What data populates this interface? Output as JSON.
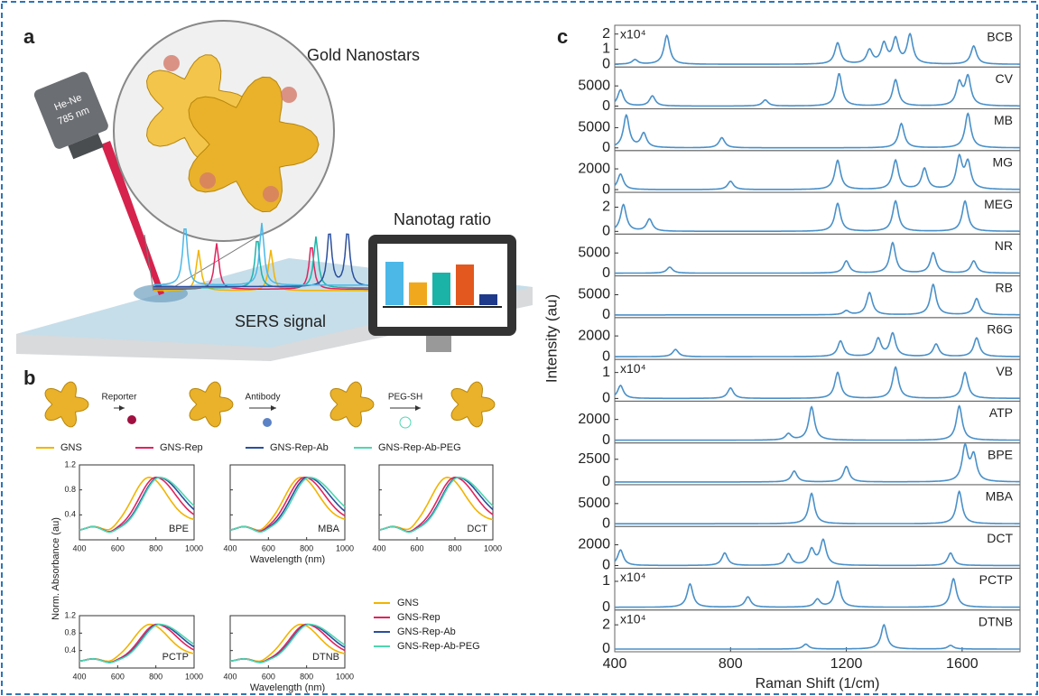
{
  "panel_labels": [
    "a",
    "b",
    "c"
  ],
  "panel_a": {
    "title": "Gold Nanostars",
    "laser_line1": "He-Ne",
    "laser_line2": "785 nm",
    "signal_label": "SERS signal",
    "monitor_title": "Nanotag ratio",
    "bars": {
      "values": [
        0.8,
        0.42,
        0.6,
        0.75,
        0.2
      ],
      "colors": [
        "#4bb8e8",
        "#f0a91e",
        "#1bb3a8",
        "#e2581e",
        "#1f3a8a"
      ]
    }
  },
  "panel_b": {
    "steps": [
      "Reporter",
      "Antibody",
      "PEG-SH"
    ],
    "series": [
      {
        "name": "GNS",
        "color": "#f2b400"
      },
      {
        "name": "GNS-Rep",
        "color": "#e0245e"
      },
      {
        "name": "GNS-Rep-Ab",
        "color": "#2a4f9e"
      },
      {
        "name": "GNS-Rep-Ab-PEG",
        "color": "#4fd6b0"
      }
    ],
    "ylabel": "Norm. Absorbance (au)",
    "xlabel": "Wavelength (nm)",
    "xlim": [
      400,
      1000
    ],
    "xticks": [
      400,
      600,
      800,
      1000
    ],
    "ylim": [
      0,
      1.2
    ],
    "yticks": [
      0.4,
      0.8,
      1.2
    ],
    "charts": [
      {
        "label": "BPE",
        "peaks": [
          765,
          800,
          815,
          820
        ]
      },
      {
        "label": "MBA",
        "peaks": [
          770,
          790,
          805,
          815
        ]
      },
      {
        "label": "DCT",
        "peaks": [
          760,
          800,
          815,
          820
        ]
      },
      {
        "label": "PCTP",
        "peaks": [
          770,
          805,
          815,
          820
        ]
      },
      {
        "label": "DTNB",
        "peaks": [
          770,
          800,
          810,
          815
        ]
      }
    ]
  },
  "panel_c": {
    "ylabel": "Intensity (au)",
    "xlabel": "Raman Shift (1/cm)",
    "color": "#4a90c8",
    "xlim": [
      400,
      1800
    ],
    "xticks": [
      400,
      800,
      1200,
      1600
    ],
    "spectra": [
      {
        "name": "BCB",
        "multiplier": "x10⁴",
        "ylim": [
          0,
          2.4
        ],
        "yticks": [
          0,
          1,
          2
        ],
        "peaks": [
          [
            470,
            0.3
          ],
          [
            580,
            1.9
          ],
          [
            1170,
            1.4
          ],
          [
            1280,
            0.9
          ],
          [
            1330,
            1.3
          ],
          [
            1370,
            1.6
          ],
          [
            1420,
            1.9
          ],
          [
            1640,
            1.2
          ]
        ]
      },
      {
        "name": "CV",
        "ylim": [
          0,
          9000
        ],
        "yticks": [
          0,
          5000
        ],
        "peaks": [
          [
            420,
            4000
          ],
          [
            530,
            2500
          ],
          [
            920,
            1500
          ],
          [
            1175,
            8000
          ],
          [
            1370,
            6500
          ],
          [
            1590,
            5500
          ],
          [
            1620,
            7000
          ]
        ]
      },
      {
        "name": "MB",
        "ylim": [
          0,
          9000
        ],
        "yticks": [
          0,
          5000
        ],
        "peaks": [
          [
            440,
            8000
          ],
          [
            500,
            3500
          ],
          [
            770,
            2500
          ],
          [
            1390,
            6000
          ],
          [
            1620,
            8500
          ]
        ]
      },
      {
        "name": "MG",
        "ylim": [
          0,
          3500
        ],
        "yticks": [
          0,
          2000
        ],
        "peaks": [
          [
            420,
            1500
          ],
          [
            800,
            800
          ],
          [
            1170,
            2800
          ],
          [
            1370,
            2800
          ],
          [
            1470,
            2000
          ],
          [
            1590,
            3000
          ],
          [
            1620,
            2500
          ]
        ]
      },
      {
        "name": "MEG",
        "ylim": [
          0,
          3
        ],
        "yticks": [
          0,
          2
        ],
        "peaks": [
          [
            430,
            2.2
          ],
          [
            520,
            1.0
          ],
          [
            1170,
            2.3
          ],
          [
            1370,
            2.5
          ],
          [
            1610,
            2.5
          ]
        ]
      },
      {
        "name": "NR",
        "ylim": [
          0,
          9000
        ],
        "yticks": [
          0,
          5000
        ],
        "peaks": [
          [
            590,
            1500
          ],
          [
            1200,
            3000
          ],
          [
            1360,
            7500
          ],
          [
            1500,
            5000
          ],
          [
            1640,
            3000
          ]
        ]
      },
      {
        "name": "RB",
        "ylim": [
          0,
          9000
        ],
        "yticks": [
          0,
          5000
        ],
        "peaks": [
          [
            1200,
            1000
          ],
          [
            1280,
            5500
          ],
          [
            1500,
            7500
          ],
          [
            1650,
            4000
          ]
        ]
      },
      {
        "name": "R6G",
        "ylim": [
          0,
          3500
        ],
        "yticks": [
          0,
          2000
        ],
        "peaks": [
          [
            610,
            700
          ],
          [
            1180,
            1500
          ],
          [
            1310,
            1700
          ],
          [
            1360,
            2200
          ],
          [
            1510,
            1200
          ],
          [
            1650,
            1800
          ]
        ]
      },
      {
        "name": "VB",
        "multiplier": "x10⁴",
        "ylim": [
          0,
          1.4
        ],
        "yticks": [
          0,
          1
        ],
        "peaks": [
          [
            420,
            0.5
          ],
          [
            800,
            0.4
          ],
          [
            1170,
            1.0
          ],
          [
            1370,
            1.2
          ],
          [
            1610,
            1.0
          ]
        ]
      },
      {
        "name": "ATP",
        "ylim": [
          0,
          3500
        ],
        "yticks": [
          0,
          2000
        ],
        "peaks": [
          [
            1000,
            600
          ],
          [
            1080,
            3200
          ],
          [
            1590,
            3300
          ]
        ]
      },
      {
        "name": "BPE",
        "ylim": [
          0,
          4000
        ],
        "yticks": [
          0,
          2500
        ],
        "peaks": [
          [
            1020,
            1200
          ],
          [
            1200,
            1700
          ],
          [
            1610,
            3800
          ],
          [
            1640,
            2800
          ]
        ]
      },
      {
        "name": "MBA",
        "ylim": [
          0,
          9000
        ],
        "yticks": [
          0,
          5000
        ],
        "peaks": [
          [
            1080,
            7500
          ],
          [
            1590,
            8000
          ]
        ]
      },
      {
        "name": "DCT",
        "ylim": [
          0,
          3500
        ],
        "yticks": [
          0,
          2000
        ],
        "peaks": [
          [
            420,
            1500
          ],
          [
            780,
            1200
          ],
          [
            1000,
            1100
          ],
          [
            1080,
            1500
          ],
          [
            1120,
            2400
          ],
          [
            1560,
            1200
          ]
        ]
      },
      {
        "name": "PCTP",
        "multiplier": "x10⁴",
        "ylim": [
          0,
          1.4
        ],
        "yticks": [
          0,
          1
        ],
        "peaks": [
          [
            660,
            0.9
          ],
          [
            860,
            0.4
          ],
          [
            1100,
            0.3
          ],
          [
            1170,
            1.0
          ],
          [
            1570,
            1.1
          ]
        ]
      },
      {
        "name": "DTNB",
        "multiplier": "x10⁴",
        "ylim": [
          0,
          3
        ],
        "yticks": [
          0,
          2
        ],
        "peaks": [
          [
            1060,
            0.4
          ],
          [
            1330,
            2.0
          ],
          [
            1560,
            0.3
          ]
        ]
      }
    ]
  }
}
